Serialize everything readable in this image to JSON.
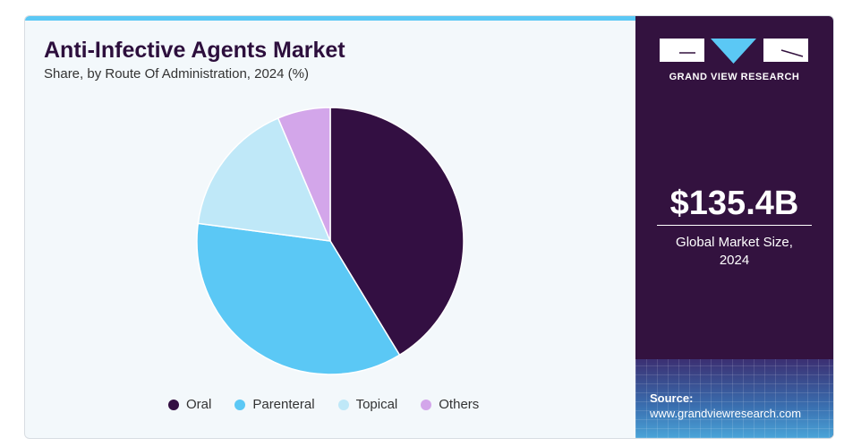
{
  "header": {
    "title": "Anti-Infective Agents Market",
    "subtitle": "Share, by Route Of Administration, 2024 (%)"
  },
  "chart_data": {
    "type": "pie",
    "title": "Anti-Infective Agents Market",
    "subtitle": "Share, by Route Of Administration, 2024 (%)",
    "categories": [
      "Oral",
      "Parenteral",
      "Topical",
      "Others"
    ],
    "values": [
      41.3,
      35.8,
      16.5,
      6.4
    ],
    "colors": [
      "#330f42",
      "#5bc8f5",
      "#bfe8f8",
      "#d3a6ea"
    ],
    "legend_position": "bottom"
  },
  "sidebar": {
    "brand": "GRAND VIEW RESEARCH",
    "market_size": "$135.4B",
    "market_size_label_1": "Global Market Size,",
    "market_size_label_2": "2024",
    "source_label": "Source:",
    "source_url": "www.grandviewresearch.com"
  }
}
